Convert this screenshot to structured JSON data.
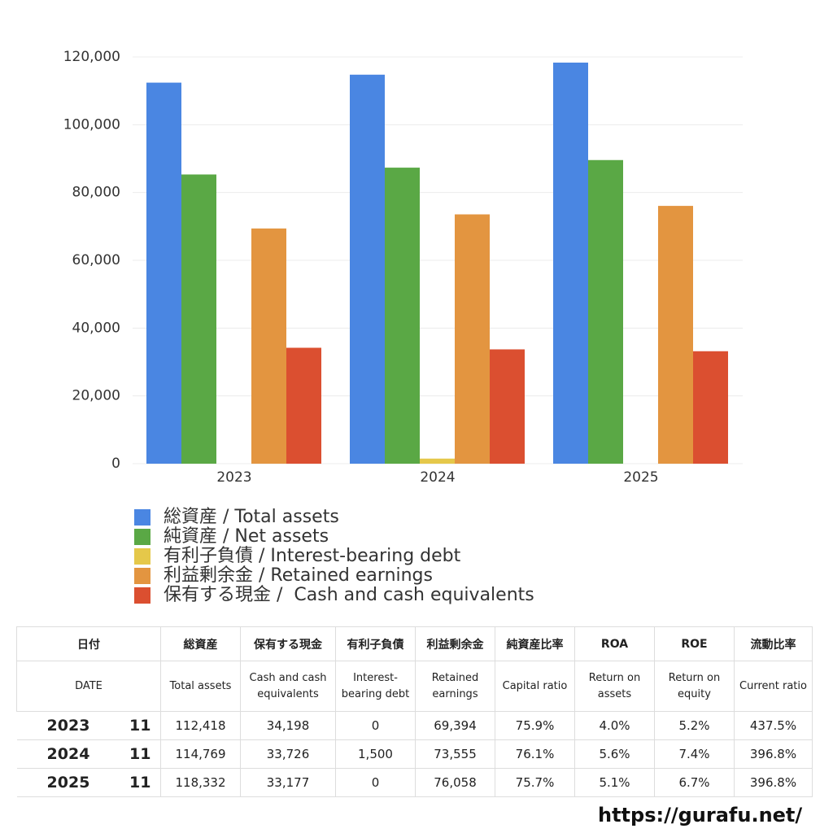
{
  "chart_data": {
    "type": "bar",
    "categories": [
      "2023",
      "2024",
      "2025"
    ],
    "series": [
      {
        "name": "総資産 / Total assets",
        "color": "#4a86e2",
        "values": [
          112418,
          114769,
          118332
        ]
      },
      {
        "name": "純資産 / Net assets",
        "color": "#5aa845",
        "values": [
          85325,
          87339,
          89577
        ]
      },
      {
        "name": "有利子負債 / Interest-bearing debt",
        "color": "#e5c84a",
        "values": [
          0,
          1500,
          0
        ]
      },
      {
        "name": "利益剰余金 / Retained earnings",
        "color": "#e39540",
        "values": [
          69394,
          73555,
          76058
        ]
      },
      {
        "name": "保有する現金 /  Cash and cash equivalents",
        "color": "#db4f30",
        "values": [
          34198,
          33726,
          33177
        ]
      }
    ],
    "ylim": [
      0,
      120000
    ],
    "yticks": [
      0,
      {
        "value": 20000,
        "label": "20,000"
      },
      {
        "value": 40000,
        "label": "40,000"
      },
      {
        "value": 60000,
        "label": "60,000"
      },
      {
        "value": 80000,
        "label": "80,000"
      },
      {
        "value": 100000,
        "label": "100,000"
      },
      {
        "value": 120000,
        "label": "120,000"
      }
    ],
    "grid": true
  },
  "table": {
    "header": [
      [
        "日付",
        "総資産",
        "保有する現金",
        "有利子負債",
        "利益剰余金",
        "純資産比率",
        "ROA",
        "ROE",
        "流動比率"
      ],
      [
        "DATE",
        "Total assets",
        "Cash and cash equivalents",
        "Interest-bearing debt",
        "Retained earnings",
        "Capital ratio",
        "Return on assets",
        "Return on equity",
        "Current ratio"
      ]
    ],
    "rows": [
      [
        "2023",
        "11",
        "112,418",
        "34,198",
        "0",
        "69,394",
        "75.9%",
        "4.0%",
        "5.2%",
        "437.5%"
      ],
      [
        "2024",
        "11",
        "114,769",
        "33,726",
        "1,500",
        "73,555",
        "76.1%",
        "5.6%",
        "7.4%",
        "396.8%"
      ],
      [
        "2025",
        "11",
        "118,332",
        "33,177",
        "0",
        "76,058",
        "75.7%",
        "5.1%",
        "6.7%",
        "396.8%"
      ]
    ]
  },
  "footer": "https://gurafu.net/"
}
